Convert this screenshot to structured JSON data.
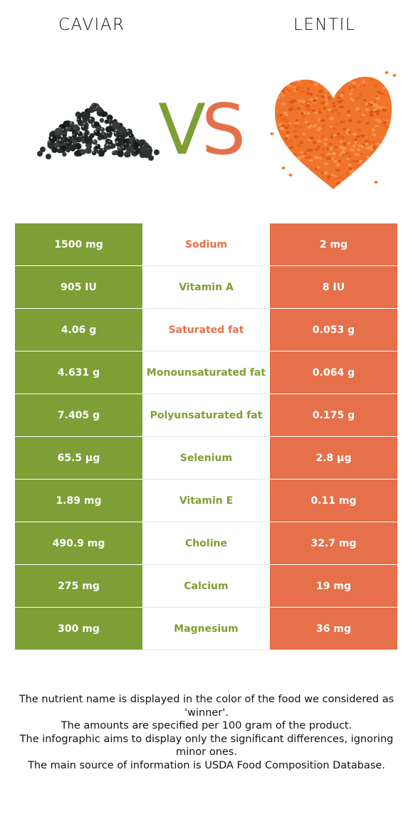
{
  "colors": {
    "winner_left": "#7d9f35",
    "winner_right": "#e5704a"
  },
  "header": {
    "left_food": "CAVIAR",
    "right_food": "LENTIL",
    "vs_v": "V",
    "vs_s": "S"
  },
  "images": {
    "left": "caviar-image",
    "right": "lentil-heart-image"
  },
  "table": {
    "rows": [
      {
        "left": "1500 mg",
        "nutrient": "Sodium",
        "right": "2 mg",
        "winner": "right"
      },
      {
        "left": "905 IU",
        "nutrient": "Vitamin A",
        "right": "8 IU",
        "winner": "left"
      },
      {
        "left": "4.06 g",
        "nutrient": "Saturated fat",
        "right": "0.053 g",
        "winner": "right"
      },
      {
        "left": "4.631 g",
        "nutrient": "Monounsaturated fat",
        "right": "0.064 g",
        "winner": "left"
      },
      {
        "left": "7.405 g",
        "nutrient": "Polyunsaturated fat",
        "right": "0.175 g",
        "winner": "left"
      },
      {
        "left": "65.5 µg",
        "nutrient": "Selenium",
        "right": "2.8 µg",
        "winner": "left"
      },
      {
        "left": "1.89 mg",
        "nutrient": "Vitamin E",
        "right": "0.11 mg",
        "winner": "left"
      },
      {
        "left": "490.9 mg",
        "nutrient": "Choline",
        "right": "32.7 mg",
        "winner": "left"
      },
      {
        "left": "275 mg",
        "nutrient": "Calcium",
        "right": "19 mg",
        "winner": "left"
      },
      {
        "left": "300 mg",
        "nutrient": "Magnesium",
        "right": "36 mg",
        "winner": "left"
      }
    ]
  },
  "footer": {
    "line1": "The nutrient name is displayed in the color of the food we considered as 'winner'.",
    "line2": "The amounts are specified per 100 gram of the product.",
    "line3": "The infographic aims to display only the significant differences, ignoring minor ones.",
    "line4": "The main source of information is USDA Food Composition Database."
  }
}
